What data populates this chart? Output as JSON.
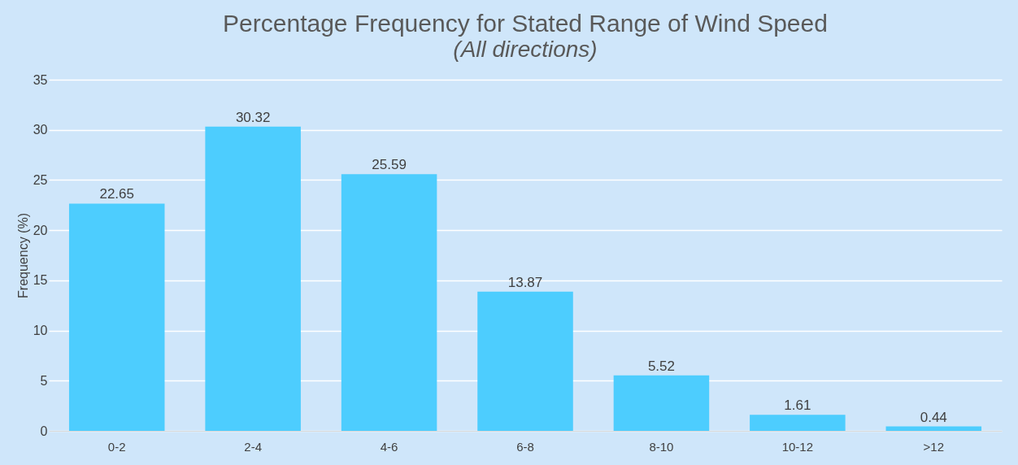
{
  "chart_data": {
    "type": "bar",
    "title": "Percentage Frequency for Stated Range of Wind Speed",
    "subtitle": "(All directions)",
    "ylabel": "Frequency (%)",
    "categories": [
      "0-2",
      "2-4",
      "4-6",
      "6-8",
      "8-10",
      "10-12",
      ">12"
    ],
    "values": [
      22.65,
      30.32,
      25.59,
      13.87,
      5.52,
      1.61,
      0.44
    ],
    "color": "#4dcdfe",
    "ylim": [
      0,
      35
    ],
    "yticks": [
      0,
      5,
      10,
      15,
      20,
      25,
      30,
      35
    ],
    "grid": "y",
    "data_labels": true
  }
}
